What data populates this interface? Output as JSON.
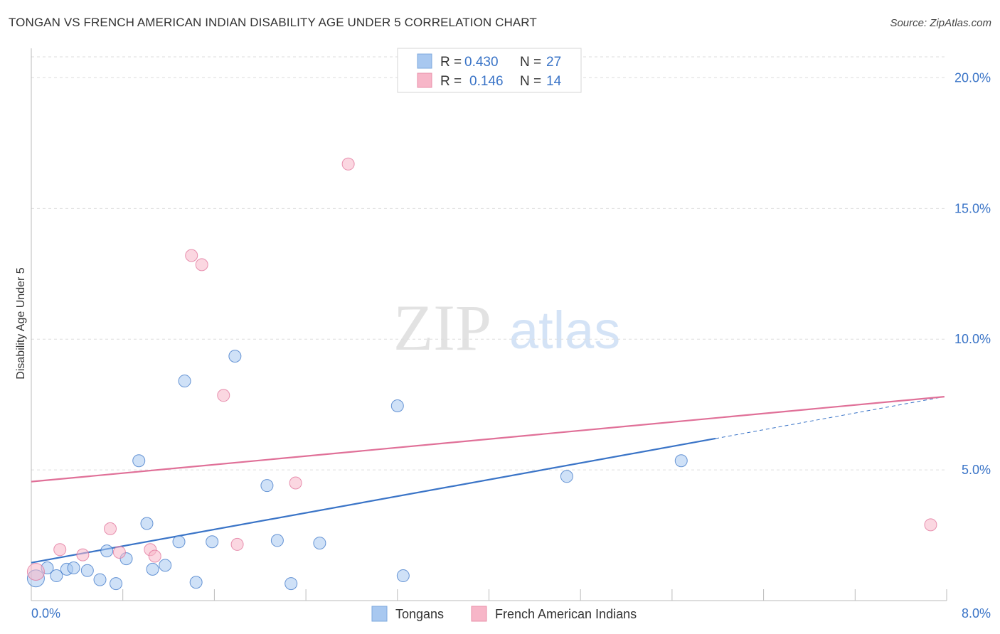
{
  "header": {
    "title": "TONGAN VS FRENCH AMERICAN INDIAN DISABILITY AGE UNDER 5 CORRELATION CHART",
    "source": "Source: ZipAtlas.com"
  },
  "watermark": {
    "zip": "ZIP",
    "atlas": "atlas"
  },
  "legend": {
    "rows": [
      {
        "r_label": "R =",
        "r_value": "0.430",
        "n_label": "N =",
        "n_value": "27",
        "color": "#a8c8f0"
      },
      {
        "r_label": "R =",
        "r_value": "0.146",
        "n_label": "N =",
        "n_value": "14",
        "color": "#f7b6c8"
      }
    ]
  },
  "bottom_legend": {
    "series1": "Tongans",
    "series2": "French American Indians"
  },
  "chart_data": {
    "type": "scatter",
    "title": "TONGAN VS FRENCH AMERICAN INDIAN DISABILITY AGE UNDER 5 CORRELATION CHART",
    "xlabel": "",
    "ylabel": "Disability Age Under 5",
    "xlim": [
      0,
      8
    ],
    "ylim": [
      0,
      20.8
    ],
    "x_tick_labels": [
      "0.0%",
      "8.0%"
    ],
    "y_ticks": [
      5,
      10,
      15,
      20
    ],
    "y_tick_labels": [
      "5.0%",
      "10.0%",
      "15.0%",
      "20.0%"
    ],
    "series": [
      {
        "name": "Tongans",
        "color": "#3a74c7",
        "fill": "#a8c8f0",
        "points": [
          [
            0.04,
            0.85
          ],
          [
            0.14,
            1.25
          ],
          [
            0.22,
            0.95
          ],
          [
            0.31,
            1.2
          ],
          [
            0.37,
            1.25
          ],
          [
            0.49,
            1.15
          ],
          [
            0.6,
            0.8
          ],
          [
            0.66,
            1.9
          ],
          [
            0.74,
            0.65
          ],
          [
            0.83,
            1.6
          ],
          [
            0.94,
            5.35
          ],
          [
            1.01,
            2.95
          ],
          [
            1.06,
            1.2
          ],
          [
            1.17,
            1.35
          ],
          [
            1.29,
            2.25
          ],
          [
            1.34,
            8.4
          ],
          [
            1.44,
            0.7
          ],
          [
            1.58,
            2.25
          ],
          [
            1.78,
            9.35
          ],
          [
            2.06,
            4.4
          ],
          [
            2.15,
            2.3
          ],
          [
            2.27,
            0.65
          ],
          [
            2.52,
            2.2
          ],
          [
            3.2,
            7.45
          ],
          [
            3.25,
            0.95
          ],
          [
            4.68,
            4.75
          ],
          [
            5.68,
            5.35
          ]
        ],
        "trend": {
          "x0": 0,
          "y0": 1.45,
          "x1": 5.98,
          "y1": 6.2,
          "dash_to_x": 7.98,
          "dash_to_y": 7.8
        }
      },
      {
        "name": "French American Indians",
        "color": "#e07098",
        "fill": "#f7b6c8",
        "points": [
          [
            0.04,
            1.1
          ],
          [
            0.25,
            1.95
          ],
          [
            0.45,
            1.75
          ],
          [
            0.69,
            2.75
          ],
          [
            0.77,
            1.85
          ],
          [
            1.04,
            1.95
          ],
          [
            1.08,
            1.7
          ],
          [
            1.4,
            13.2
          ],
          [
            1.49,
            12.85
          ],
          [
            1.68,
            7.85
          ],
          [
            1.8,
            2.15
          ],
          [
            2.31,
            4.5
          ],
          [
            2.77,
            16.7
          ],
          [
            7.86,
            2.9
          ]
        ],
        "trend": {
          "x0": 0,
          "y0": 4.55,
          "x1": 7.98,
          "y1": 7.8
        }
      }
    ]
  }
}
